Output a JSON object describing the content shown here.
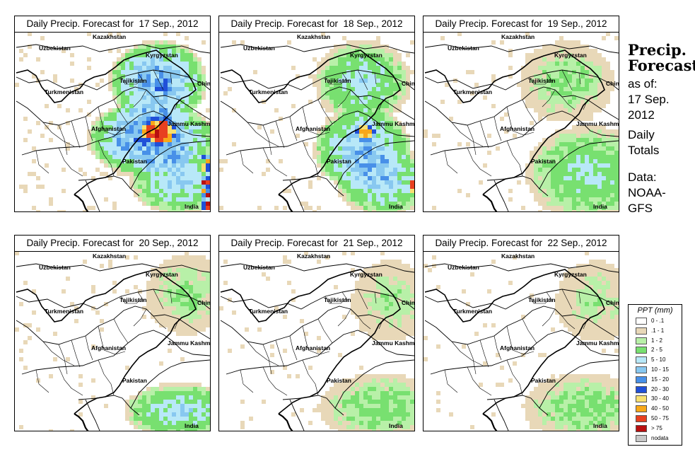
{
  "panels": [
    {
      "title": "Daily Precip. Forecast for  17 Sep., 2012",
      "intensity": 1.0,
      "pattern": "heavy"
    },
    {
      "title": "Daily Precip. Forecast for  18 Sep., 2012",
      "intensity": 0.7,
      "pattern": "moderate"
    },
    {
      "title": "Daily Precip. Forecast for  19 Sep., 2012",
      "intensity": 0.4,
      "pattern": "light"
    },
    {
      "title": "Daily Precip. Forecast for  20 Sep., 2012",
      "intensity": 0.35,
      "pattern": "light-south"
    },
    {
      "title": "Daily Precip. Forecast for  21 Sep., 2012",
      "intensity": 0.25,
      "pattern": "scattered"
    },
    {
      "title": "Daily Precip. Forecast for  22 Sep., 2012",
      "intensity": 0.2,
      "pattern": "scattered"
    }
  ],
  "map_labels": [
    "Kazakhstan",
    "Uzbekistan",
    "Kyrgyzstan",
    "Tajikistan",
    "China",
    "Turkmenistan",
    "Afghanistan",
    "Jammu Kashmir",
    "Pakistan",
    "India"
  ],
  "info": {
    "heading_line1": "Precip.",
    "heading_line2": "Forecast",
    "as_of": "as of:",
    "date_line1": "17 Sep.",
    "date_line2": "2012",
    "daily1": "Daily",
    "daily2": "Totals",
    "data1": "Data:",
    "data2": "NOAA-",
    "data3": "GFS"
  },
  "legend": {
    "title": "PPT (mm)",
    "items": [
      {
        "label": "0 - .1",
        "color": "#ffffff"
      },
      {
        "label": ".1 - 1",
        "color": "#e8d8b8"
      },
      {
        "label": "1 - 2",
        "color": "#b8f0a8"
      },
      {
        "label": "2 - 5",
        "color": "#78e070"
      },
      {
        "label": "5 - 10",
        "color": "#b8e8f8"
      },
      {
        "label": "10 - 15",
        "color": "#88c8f0"
      },
      {
        "label": "15 - 20",
        "color": "#4890e8"
      },
      {
        "label": "20 - 30",
        "color": "#2050d8"
      },
      {
        "label": "30 - 40",
        "color": "#f8e070"
      },
      {
        "label": "40 - 50",
        "color": "#f8a818"
      },
      {
        "label": "50 - 75",
        "color": "#e84020"
      },
      {
        "label": "> 75",
        "color": "#b81010"
      },
      {
        "label": "nodata",
        "color": "#c8c8c8"
      }
    ]
  }
}
